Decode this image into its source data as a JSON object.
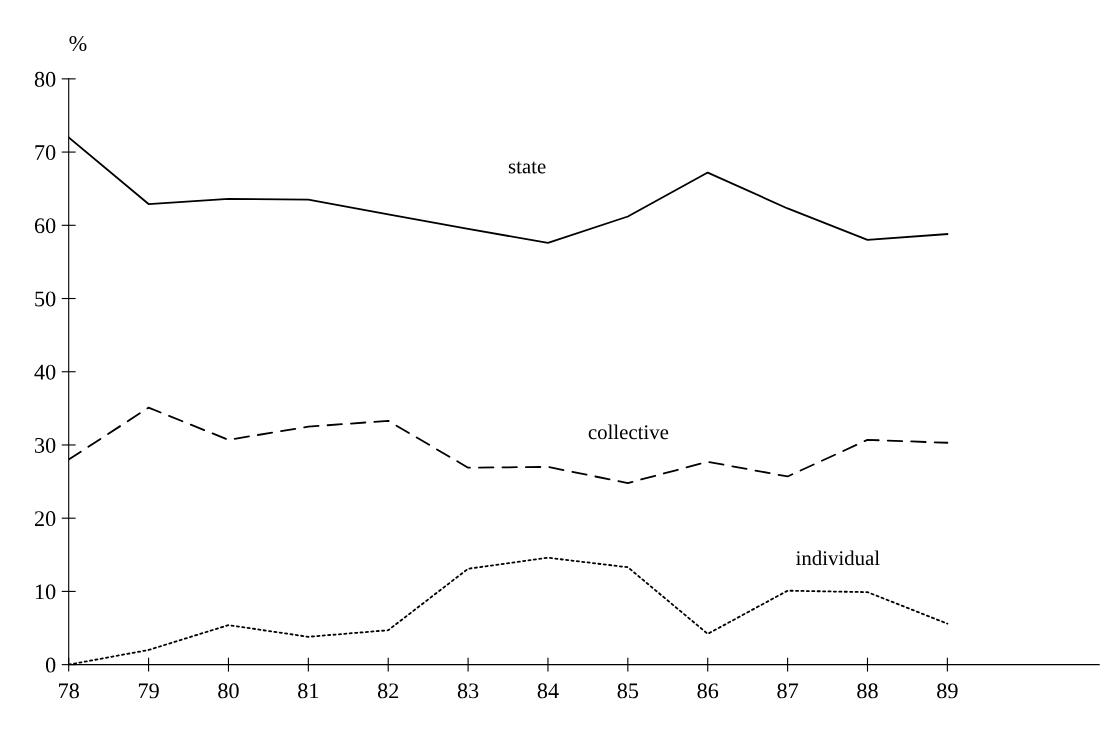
{
  "chart_data": {
    "type": "line",
    "ylabel": "%",
    "x": [
      78,
      79,
      80,
      81,
      82,
      83,
      84,
      85,
      86,
      87,
      88,
      89
    ],
    "series": [
      {
        "name": "state",
        "color": "#000000",
        "line_style": "solid",
        "values": [
          72,
          62.9,
          63.6,
          63.5,
          61.5,
          59.5,
          57.6,
          61.2,
          67.2,
          62.3,
          58,
          58.8
        ]
      },
      {
        "name": "collective",
        "color": "#000000",
        "line_style": "dashed",
        "values": [
          28,
          35.1,
          30.7,
          32.5,
          33.3,
          26.9,
          27,
          24.8,
          27.7,
          25.7,
          30.7,
          30.3
        ]
      },
      {
        "name": "individual",
        "color": "#000000",
        "line_style": "dotted",
        "values": [
          0,
          2,
          5.4,
          3.8,
          4.7,
          13.1,
          14.6,
          13.3,
          4.2,
          10.1,
          9.9,
          5.6
        ]
      }
    ],
    "xlim": [
      78,
      90.9
    ],
    "xticks": [
      78,
      79,
      80,
      81,
      82,
      83,
      84,
      85,
      86,
      87,
      88,
      89
    ],
    "ylim": [
      0,
      80
    ],
    "yticks": [
      0,
      10,
      20,
      30,
      40,
      50,
      60,
      70,
      80
    ],
    "grid": false,
    "legend": false,
    "marker": "none"
  }
}
